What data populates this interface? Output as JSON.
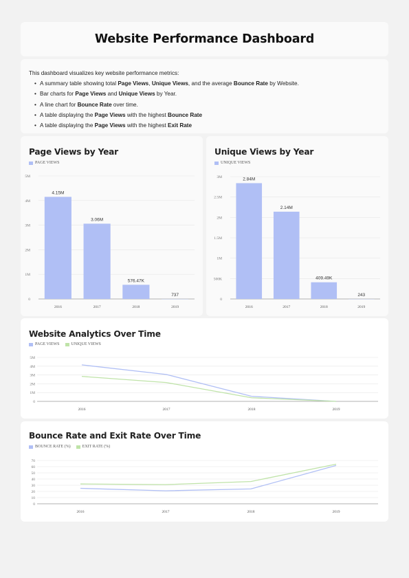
{
  "header": {
    "title": "Website Performance Dashboard"
  },
  "description": {
    "intro": "This dashboard visualizes key website performance metrics:",
    "bullets": [
      [
        {
          "t": "A summary table showing total "
        },
        {
          "t": "Page Views",
          "b": true
        },
        {
          "t": ", "
        },
        {
          "t": "Unique Views",
          "b": true
        },
        {
          "t": ", and the average "
        },
        {
          "t": "Bounce Rate",
          "b": true
        },
        {
          "t": " by Website."
        }
      ],
      [
        {
          "t": "Bar charts for "
        },
        {
          "t": "Page Views",
          "b": true
        },
        {
          "t": " and "
        },
        {
          "t": "Unique Views",
          "b": true
        },
        {
          "t": " by Year."
        }
      ],
      [
        {
          "t": "A line chart for "
        },
        {
          "t": "Bounce Rate",
          "b": true
        },
        {
          "t": " over time."
        }
      ],
      [
        {
          "t": "A table displaying the "
        },
        {
          "t": "Page Views",
          "b": true
        },
        {
          "t": " with the highest "
        },
        {
          "t": "Bounce Rate",
          "b": true
        }
      ],
      [
        {
          "t": "A table displaying the "
        },
        {
          "t": "Page Views",
          "b": true
        },
        {
          "t": " with the highest "
        },
        {
          "t": "Exit Rate",
          "b": true
        }
      ]
    ]
  },
  "colors": {
    "blue": "#b0bff5",
    "green": "#bfe3a8",
    "grid": "#e6e6e6",
    "axis": "#999999"
  },
  "chart_data": [
    {
      "id": "page-views",
      "type": "bar",
      "title": "Page Views by Year",
      "categories": [
        "2016",
        "2017",
        "2018",
        "2019"
      ],
      "series": [
        {
          "name": "PAGE VIEWS",
          "values": [
            4150000,
            3060000,
            576470,
            737
          ]
        }
      ],
      "data_labels": [
        "4.15M",
        "3.06M",
        "576.47K",
        "737"
      ],
      "ylim": [
        0,
        5000000
      ],
      "yticks": [
        0,
        1000000,
        2000000,
        3000000,
        4000000,
        5000000
      ],
      "yticklabels": [
        "0",
        "1M",
        "2M",
        "3M",
        "4M",
        "5M"
      ],
      "grid": true,
      "legend": "top-left"
    },
    {
      "id": "unique-views",
      "type": "bar",
      "title": "Unique Views by Year",
      "categories": [
        "2016",
        "2017",
        "2018",
        "2019"
      ],
      "series": [
        {
          "name": "UNIQUE VIEWS",
          "values": [
            2840000,
            2140000,
            409490,
            243
          ]
        }
      ],
      "data_labels": [
        "2.84M",
        "2.14M",
        "409.49K",
        "243"
      ],
      "ylim": [
        0,
        3000000
      ],
      "yticks": [
        0,
        500000,
        1000000,
        1500000,
        2000000,
        2500000,
        3000000
      ],
      "yticklabels": [
        "0",
        "500K",
        "1M",
        "1.5M",
        "2M",
        "2.5M",
        "3M"
      ],
      "grid": true,
      "legend": "top-left"
    },
    {
      "id": "analytics",
      "type": "line",
      "title": "Website Analytics Over Time",
      "x": [
        "2016",
        "2017",
        "2018",
        "2019"
      ],
      "series": [
        {
          "name": "PAGE VIEWS",
          "values": [
            4150000,
            3060000,
            576470,
            737
          ]
        },
        {
          "name": "UNIQUE VIEWS",
          "values": [
            2840000,
            2140000,
            409490,
            243
          ]
        }
      ],
      "ylim": [
        0,
        5000000
      ],
      "yticks": [
        0,
        1000000,
        2000000,
        3000000,
        4000000,
        5000000
      ],
      "yticklabels": [
        "0",
        "1M",
        "2M",
        "3M",
        "4M",
        "5M"
      ],
      "grid": true,
      "legend": "top-left"
    },
    {
      "id": "rates",
      "type": "line",
      "title": "Bounce Rate and Exit Rate Over Time",
      "x": [
        "2016",
        "2017",
        "2018",
        "2019"
      ],
      "series": [
        {
          "name": "BOUNCE RATE (%)",
          "values": [
            25,
            21,
            24,
            62
          ]
        },
        {
          "name": "EXIT RATE (%)",
          "values": [
            32,
            31,
            36,
            64
          ]
        }
      ],
      "ylim": [
        0,
        70
      ],
      "yticks": [
        0,
        10,
        20,
        30,
        40,
        50,
        60,
        70
      ],
      "yticklabels": [
        "0",
        "10",
        "20",
        "30",
        "40",
        "50",
        "60",
        "70"
      ],
      "grid": true,
      "legend": "top-left"
    }
  ]
}
